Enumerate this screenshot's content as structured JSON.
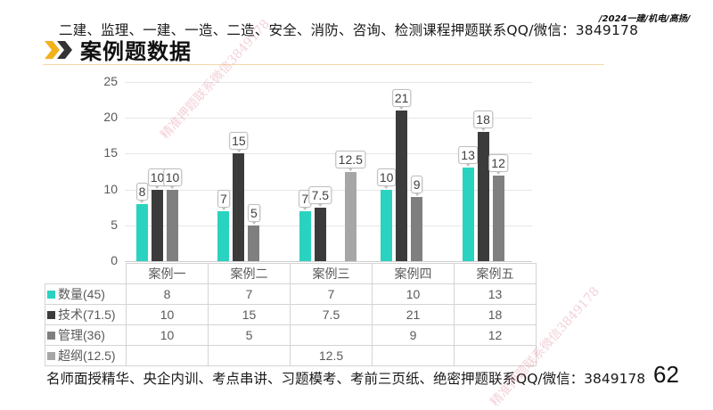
{
  "header": {
    "banner": "二建、监理、一建、一造、二造、安全、消防、咨询、检测课程押题联系QQ/微信：3849178",
    "tag": "/2024一建/机电/高扬/",
    "title": "案例题数据"
  },
  "footer": {
    "text": "名师面授精华、央企内训、考点串讲、习题模考、考前三页纸、绝密押题联系QQ/微信：3849178",
    "page_number": "62"
  },
  "watermarks": [
    "精准押题联系微信3849178",
    "精准押题联系微信3849178"
  ],
  "colors": {
    "quantity": "#2ad3c0",
    "technology": "#3b3b3b",
    "management": "#7f7f7f",
    "beyond_syllabus": "#a6a6a6",
    "accent_chevron": "#f2b21b"
  },
  "chart_data": {
    "type": "bar",
    "title": "案例题数据",
    "xlabel": "",
    "ylabel": "",
    "ylim": [
      0,
      25
    ],
    "yticks": [
      "0",
      "5",
      "10",
      "15",
      "20",
      "25"
    ],
    "grid": true,
    "legend_position": "data-table",
    "categories": [
      "案例一",
      "案例二",
      "案例三",
      "案例四",
      "案例五"
    ],
    "series": [
      {
        "name": "数量(45)",
        "values": [
          8,
          7,
          7,
          10,
          13
        ],
        "labels": [
          "8",
          "7",
          "7",
          "10",
          "13"
        ]
      },
      {
        "name": "技术(71.5)",
        "values": [
          10,
          15,
          7.5,
          21,
          18
        ],
        "labels": [
          "10",
          "15",
          "7.5",
          "21",
          "18"
        ]
      },
      {
        "name": "管理(36)",
        "values": [
          10,
          5,
          null,
          9,
          12
        ],
        "labels": [
          "10",
          "5",
          "",
          "9",
          "12"
        ]
      },
      {
        "name": "超纲(12.5)",
        "values": [
          null,
          null,
          12.5,
          null,
          null
        ],
        "labels": [
          "",
          "",
          "12.5",
          "",
          ""
        ]
      }
    ]
  }
}
